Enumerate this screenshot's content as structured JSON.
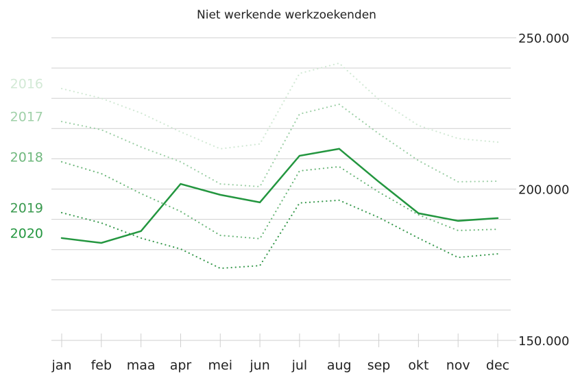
{
  "chart_data": {
    "type": "line",
    "title": "Niet werkende werkzoekenden",
    "categories": [
      "jan",
      "feb",
      "maa",
      "apr",
      "mei",
      "jun",
      "jul",
      "aug",
      "sep",
      "okt",
      "nov",
      "dec"
    ],
    "ylim": [
      150000,
      250000
    ],
    "yticks": [
      {
        "value": 150000,
        "label": "150.000"
      },
      {
        "value": 200000,
        "label": "200.000"
      },
      {
        "value": 250000,
        "label": "250.000"
      }
    ],
    "ygrid": [
      150000,
      160000,
      170000,
      180000,
      190000,
      200000,
      210000,
      220000,
      230000,
      240000,
      250000
    ],
    "grid": true,
    "series": [
      {
        "name": "2016",
        "color": "#d2e9d5",
        "dash": "dotted",
        "values": [
          233200,
          230000,
          225100,
          218900,
          213300,
          214900,
          238200,
          241600,
          229600,
          221000,
          216700,
          215500
        ]
      },
      {
        "name": "2017",
        "color": "#9fd0a8",
        "dash": "dotted",
        "values": [
          222300,
          219600,
          213900,
          209000,
          201700,
          200800,
          224800,
          228000,
          218300,
          209400,
          202400,
          202600
        ]
      },
      {
        "name": "2018",
        "color": "#6fb87d",
        "dash": "dotted",
        "values": [
          209000,
          205100,
          198500,
          192600,
          184700,
          183600,
          206000,
          207400,
          199000,
          191500,
          186300,
          186700
        ]
      },
      {
        "name": "2019",
        "color": "#3a9a4f",
        "dash": "dotted",
        "values": [
          192200,
          188800,
          183800,
          180200,
          173800,
          174700,
          195400,
          196300,
          190600,
          183800,
          177400,
          178600
        ]
      },
      {
        "name": "2020",
        "color": "#23963f",
        "dash": "solid",
        "values": [
          183800,
          182200,
          186100,
          201700,
          198100,
          195600,
          211000,
          213300,
          202400,
          192000,
          189500,
          190400
        ]
      }
    ]
  }
}
